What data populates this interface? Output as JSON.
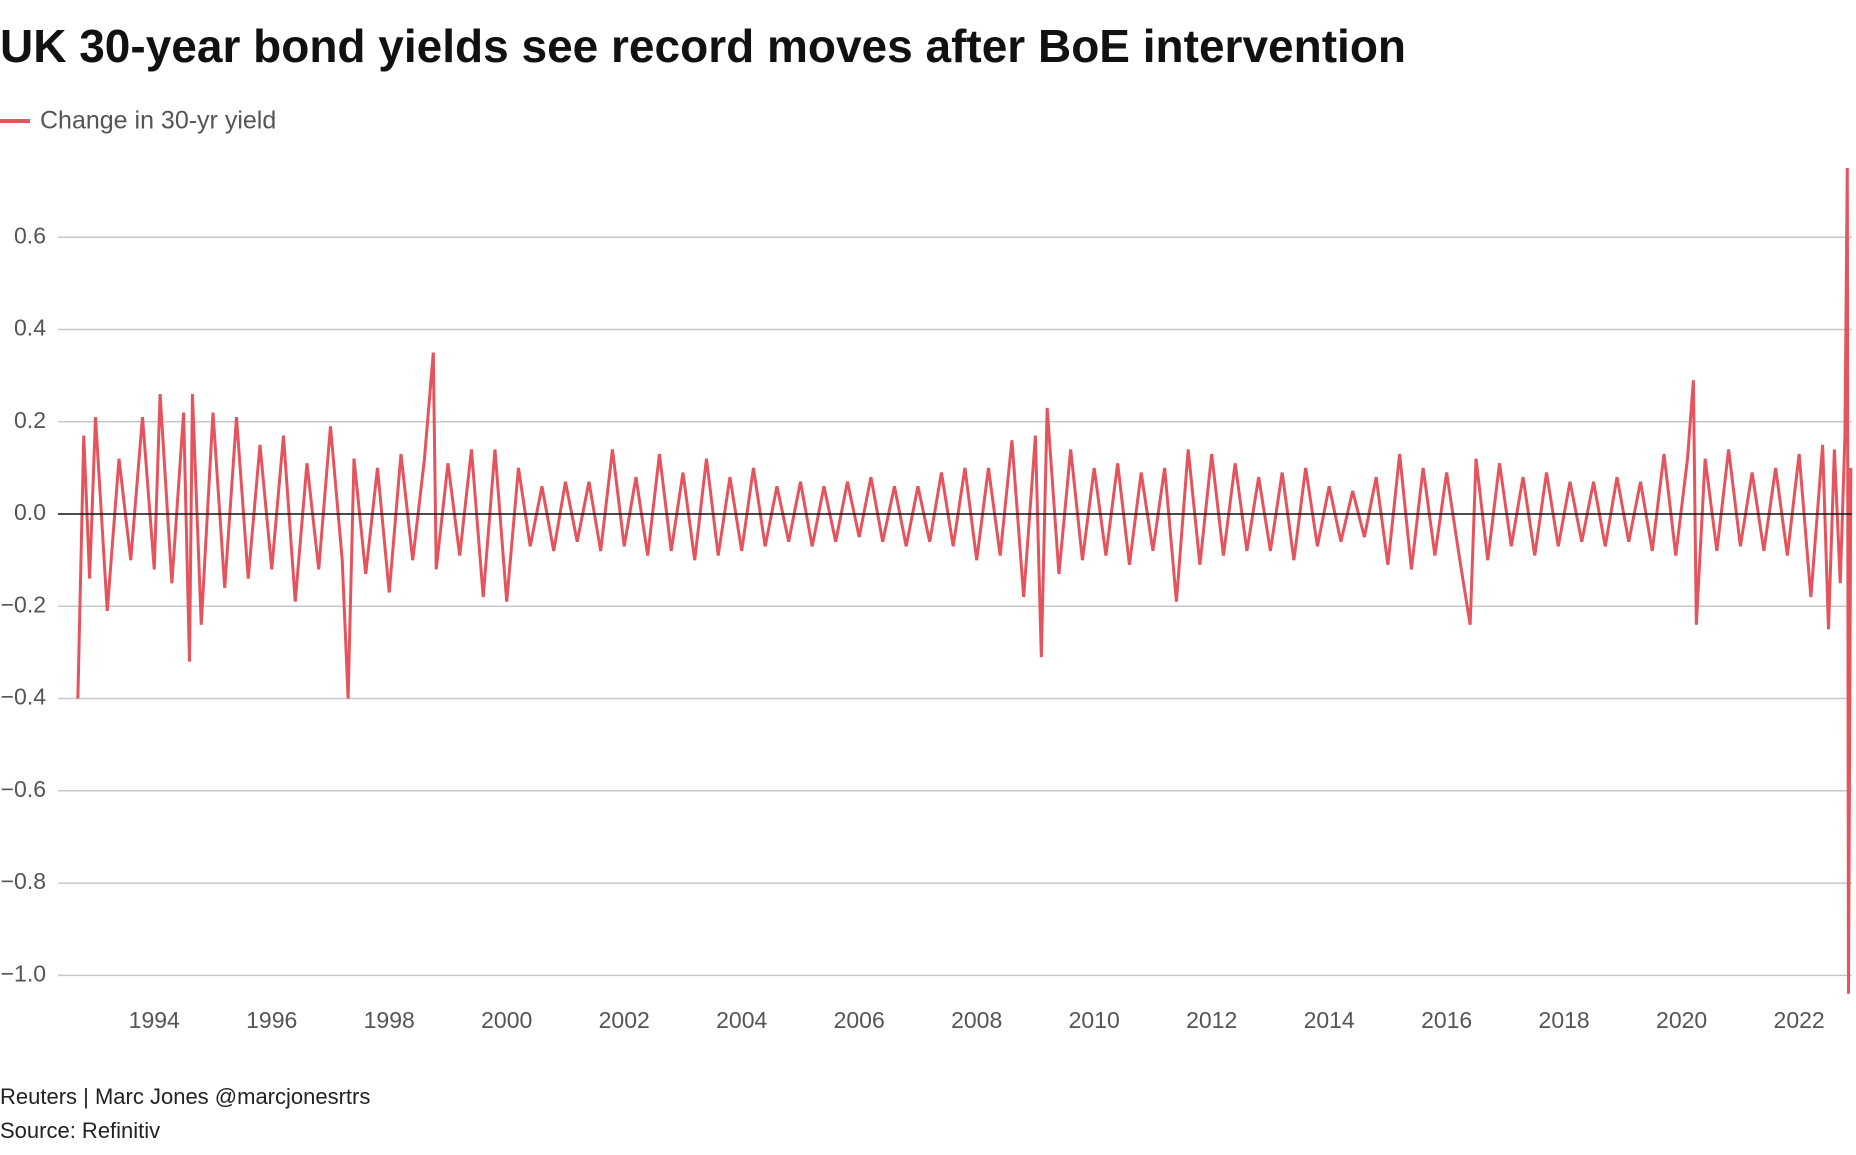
{
  "chart_data": {
    "type": "line",
    "title": "UK 30-year bond yields see record moves after BoE intervention",
    "footer": "Reuters | Marc Jones @marcjonesrtrs",
    "source": "Source: Refinitiv",
    "grid": true,
    "legend": "top-left",
    "xlim": [
      1992.6,
      2022.9
    ],
    "xticks": [
      1994,
      1996,
      1998,
      2000,
      2002,
      2004,
      2006,
      2008,
      2010,
      2012,
      2014,
      2016,
      2018,
      2020,
      2022
    ],
    "ylim": [
      -1.06,
      0.8
    ],
    "yticks": [
      {
        "value": -1.0,
        "label": "−1.0"
      },
      {
        "value": -0.8,
        "label": "−0.8"
      },
      {
        "value": -0.6,
        "label": "−0.6"
      },
      {
        "value": -0.4,
        "label": "−0.4"
      },
      {
        "value": -0.2,
        "label": "−0.2"
      },
      {
        "value": 0,
        "label": "0.0"
      },
      0.2,
      0.4,
      0.6
    ],
    "x": [
      1992.7,
      1992.8,
      1992.9,
      1993.0,
      1993.2,
      1993.4,
      1993.6,
      1993.8,
      1994.0,
      1994.1,
      1994.3,
      1994.5,
      1994.6,
      1994.65,
      1994.8,
      1995.0,
      1995.2,
      1995.4,
      1995.6,
      1995.8,
      1996.0,
      1996.2,
      1996.4,
      1996.6,
      1996.8,
      1997.0,
      1997.2,
      1997.3,
      1997.4,
      1997.6,
      1997.8,
      1998.0,
      1998.2,
      1998.4,
      1998.6,
      1998.75,
      1998.8,
      1999.0,
      1999.2,
      1999.4,
      1999.6,
      1999.8,
      2000.0,
      2000.2,
      2000.4,
      2000.6,
      2000.8,
      2001.0,
      2001.2,
      2001.4,
      2001.6,
      2001.8,
      2002.0,
      2002.2,
      2002.4,
      2002.6,
      2002.8,
      2003.0,
      2003.2,
      2003.4,
      2003.6,
      2003.8,
      2004.0,
      2004.2,
      2004.4,
      2004.6,
      2004.8,
      2005.0,
      2005.2,
      2005.4,
      2005.6,
      2005.8,
      2006.0,
      2006.2,
      2006.4,
      2006.6,
      2006.8,
      2007.0,
      2007.2,
      2007.4,
      2007.6,
      2007.8,
      2008.0,
      2008.2,
      2008.4,
      2008.6,
      2008.8,
      2009.0,
      2009.1,
      2009.2,
      2009.4,
      2009.6,
      2009.8,
      2010.0,
      2010.2,
      2010.4,
      2010.6,
      2010.8,
      2011.0,
      2011.2,
      2011.4,
      2011.6,
      2011.8,
      2012.0,
      2012.2,
      2012.4,
      2012.6,
      2012.8,
      2013.0,
      2013.2,
      2013.4,
      2013.6,
      2013.8,
      2014.0,
      2014.2,
      2014.4,
      2014.6,
      2014.8,
      2015.0,
      2015.2,
      2015.4,
      2015.6,
      2015.8,
      2016.0,
      2016.2,
      2016.4,
      2016.5,
      2016.7,
      2016.9,
      2017.1,
      2017.3,
      2017.5,
      2017.7,
      2017.9,
      2018.1,
      2018.3,
      2018.5,
      2018.7,
      2018.9,
      2019.1,
      2019.3,
      2019.5,
      2019.7,
      2019.9,
      2020.1,
      2020.2,
      2020.25,
      2020.4,
      2020.6,
      2020.8,
      2021.0,
      2021.2,
      2021.4,
      2021.6,
      2021.8,
      2022.0,
      2022.2,
      2022.4,
      2022.5,
      2022.6,
      2022.7,
      2022.78,
      2022.82,
      2022.84,
      2022.86,
      2022.88
    ],
    "series": [
      {
        "name": "Change in 30-yr yield",
        "color": "#e5535c",
        "values": [
          -0.4,
          0.17,
          -0.14,
          0.21,
          -0.21,
          0.12,
          -0.1,
          0.21,
          -0.12,
          0.26,
          -0.15,
          0.22,
          -0.32,
          0.26,
          -0.24,
          0.22,
          -0.16,
          0.21,
          -0.14,
          0.15,
          -0.12,
          0.17,
          -0.19,
          0.11,
          -0.12,
          0.19,
          -0.1,
          -0.4,
          0.12,
          -0.13,
          0.1,
          -0.17,
          0.13,
          -0.1,
          0.12,
          0.35,
          -0.12,
          0.11,
          -0.09,
          0.14,
          -0.18,
          0.14,
          -0.19,
          0.1,
          -0.07,
          0.06,
          -0.08,
          0.07,
          -0.06,
          0.07,
          -0.08,
          0.14,
          -0.07,
          0.08,
          -0.09,
          0.13,
          -0.08,
          0.09,
          -0.1,
          0.12,
          -0.09,
          0.08,
          -0.08,
          0.1,
          -0.07,
          0.06,
          -0.06,
          0.07,
          -0.07,
          0.06,
          -0.06,
          0.07,
          -0.05,
          0.08,
          -0.06,
          0.06,
          -0.07,
          0.06,
          -0.06,
          0.09,
          -0.07,
          0.1,
          -0.1,
          0.1,
          -0.09,
          0.16,
          -0.18,
          0.17,
          -0.31,
          0.23,
          -0.13,
          0.14,
          -0.1,
          0.1,
          -0.09,
          0.11,
          -0.11,
          0.09,
          -0.08,
          0.1,
          -0.19,
          0.14,
          -0.11,
          0.13,
          -0.09,
          0.11,
          -0.08,
          0.08,
          -0.08,
          0.09,
          -0.1,
          0.1,
          -0.07,
          0.06,
          -0.06,
          0.05,
          -0.05,
          0.08,
          -0.11,
          0.13,
          -0.12,
          0.1,
          -0.09,
          0.09,
          -0.08,
          -0.24,
          0.12,
          -0.1,
          0.11,
          -0.07,
          0.08,
          -0.09,
          0.09,
          -0.07,
          0.07,
          -0.06,
          0.07,
          -0.07,
          0.08,
          -0.06,
          0.07,
          -0.08,
          0.13,
          -0.09,
          0.12,
          0.29,
          -0.24,
          0.12,
          -0.08,
          0.14,
          -0.07,
          0.09,
          -0.08,
          0.1,
          -0.09,
          0.13,
          -0.18,
          0.15,
          -0.25,
          0.14,
          -0.15,
          0.17,
          0.75,
          -1.04,
          -0.48,
          0.1
        ]
      }
    ]
  }
}
